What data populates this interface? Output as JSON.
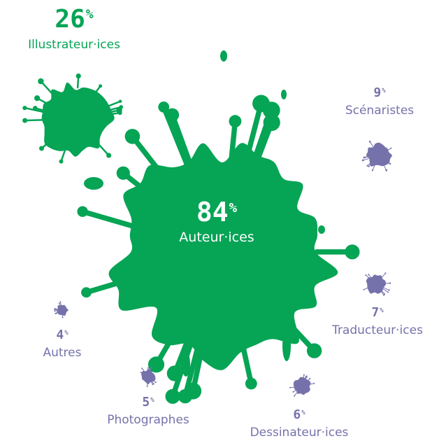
{
  "chart_data": {
    "type": "bubble",
    "unit": "%",
    "colors": {
      "main": "#06a455",
      "secondary": "#7572ab"
    },
    "series": [
      {
        "id": "auteur",
        "label": "Auteur·ices",
        "value": 84,
        "color": "#06a455"
      },
      {
        "id": "illustrateur",
        "label": "Illustrateur·ices",
        "value": 26,
        "color": "#06a455"
      },
      {
        "id": "scenaristes",
        "label": "Scénaristes",
        "value": 9,
        "color": "#7572ab"
      },
      {
        "id": "traducteur",
        "label": "Traducteur·ices",
        "value": 7,
        "color": "#7572ab"
      },
      {
        "id": "dessinateur",
        "label": "Dessinateur·ices",
        "value": 6,
        "color": "#7572ab"
      },
      {
        "id": "photographes",
        "label": "Photographes",
        "value": 5,
        "color": "#7572ab"
      },
      {
        "id": "autres",
        "label": "Autres",
        "value": 4,
        "color": "#7572ab"
      }
    ]
  }
}
